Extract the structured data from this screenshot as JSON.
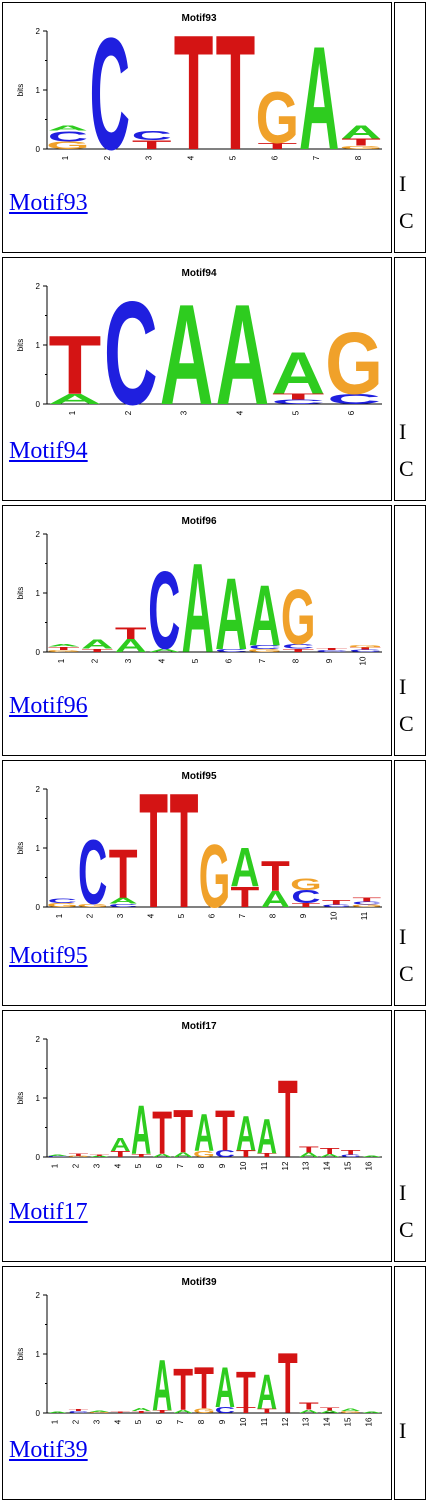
{
  "colors": {
    "A": "#2ecc1f",
    "C": "#1f1fdf",
    "G": "#f0a12a",
    "T": "#d41414",
    "link": "#0000ee"
  },
  "axis": {
    "ylabel": "bits",
    "ticks": [
      "0",
      "1",
      "2"
    ]
  },
  "motifs": [
    {
      "title": "Motif93",
      "link_text": "Motif93",
      "side_a": "I",
      "side_b": "C",
      "columns": [
        [
          [
            "G",
            0.13
          ],
          [
            "C",
            0.18
          ],
          [
            "A",
            0.09
          ]
        ],
        [
          [
            "C",
            1.95
          ]
        ],
        [
          [
            "T",
            0.15
          ],
          [
            "C",
            0.16
          ]
        ],
        [
          [
            "T",
            2.0
          ]
        ],
        [
          [
            "T",
            2.0
          ]
        ],
        [
          [
            "T",
            0.1
          ],
          [
            "G",
            0.9
          ]
        ],
        [
          [
            "A",
            1.8
          ]
        ],
        [
          [
            "G",
            0.06
          ],
          [
            "T",
            0.12
          ],
          [
            "A",
            0.22
          ]
        ]
      ]
    },
    {
      "title": "Motif94",
      "link_text": "Motif94",
      "side_a": "I",
      "side_b": "C",
      "columns": [
        [
          [
            "A",
            0.18
          ],
          [
            "T",
            1.02
          ]
        ],
        [
          [
            "C",
            1.8
          ]
        ],
        [
          [
            "A",
            1.75
          ]
        ],
        [
          [
            "A",
            1.75
          ]
        ],
        [
          [
            "C",
            0.08
          ],
          [
            "T",
            0.1
          ],
          [
            "A",
            0.72
          ]
        ],
        [
          [
            "C",
            0.18
          ],
          [
            "G",
            1.08
          ]
        ]
      ]
    },
    {
      "title": "Motif96",
      "link_text": "Motif96",
      "side_a": "I",
      "side_b": "C",
      "columns": [
        [
          [
            "G",
            0.03
          ],
          [
            "T",
            0.06
          ],
          [
            "A",
            0.04
          ]
        ],
        [
          [
            "T",
            0.06
          ],
          [
            "A",
            0.16
          ]
        ],
        [
          [
            "A",
            0.22
          ],
          [
            "T",
            0.2
          ]
        ],
        [
          [
            "A",
            0.06
          ],
          [
            "C",
            1.35
          ]
        ],
        [
          [
            "A",
            1.55
          ]
        ],
        [
          [
            "C",
            0.05
          ],
          [
            "A",
            1.25
          ]
        ],
        [
          [
            "G",
            0.05
          ],
          [
            "C",
            0.07
          ],
          [
            "A",
            1.05
          ]
        ],
        [
          [
            "T",
            0.06
          ],
          [
            "C",
            0.08
          ],
          [
            "G",
            0.95
          ]
        ],
        [
          [
            "C",
            0.03
          ],
          [
            "T",
            0.03
          ]
        ],
        [
          [
            "C",
            0.04
          ],
          [
            "T",
            0.04
          ],
          [
            "G",
            0.04
          ]
        ]
      ]
    },
    {
      "title": "Motif95",
      "link_text": "Motif95",
      "side_a": "I",
      "side_b": "C",
      "columns": [
        [
          [
            "G",
            0.07
          ],
          [
            "C",
            0.08
          ]
        ],
        [
          [
            "G",
            0.06
          ],
          [
            "C",
            1.12
          ]
        ],
        [
          [
            "C",
            0.06
          ],
          [
            "A",
            0.1
          ],
          [
            "T",
            0.85
          ]
        ],
        [
          [
            "T",
            2.0
          ]
        ],
        [
          [
            "T",
            2.0
          ]
        ],
        [
          [
            "G",
            1.1
          ]
        ],
        [
          [
            "T",
            0.35
          ],
          [
            "A",
            0.68
          ]
        ],
        [
          [
            "A",
            0.28
          ],
          [
            "T",
            0.52
          ]
        ],
        [
          [
            "T",
            0.07
          ],
          [
            "C",
            0.22
          ],
          [
            "G",
            0.2
          ]
        ],
        [
          [
            "C",
            0.04
          ],
          [
            "T",
            0.08
          ]
        ],
        [
          [
            "G",
            0.04
          ],
          [
            "C",
            0.05
          ],
          [
            "T",
            0.07
          ]
        ]
      ]
    },
    {
      "title": "Motif17",
      "link_text": "Motif17",
      "side_a": "I",
      "side_b": "C",
      "columns": [
        [
          [
            "C",
            0.02
          ],
          [
            "A",
            0.02
          ]
        ],
        [
          [
            "G",
            0.02
          ],
          [
            "T",
            0.04
          ]
        ],
        [
          [
            "A",
            0.02
          ],
          [
            "T",
            0.02
          ]
        ],
        [
          [
            "T",
            0.1
          ],
          [
            "A",
            0.22
          ]
        ],
        [
          [
            "T",
            0.05
          ],
          [
            "A",
            0.85
          ]
        ],
        [
          [
            "A",
            0.05
          ],
          [
            "T",
            0.75
          ]
        ],
        [
          [
            "A",
            0.08
          ],
          [
            "T",
            0.75
          ]
        ],
        [
          [
            "G",
            0.1
          ],
          [
            "A",
            0.65
          ]
        ],
        [
          [
            "C",
            0.12
          ],
          [
            "T",
            0.7
          ]
        ],
        [
          [
            "T",
            0.12
          ],
          [
            "A",
            0.6
          ]
        ],
        [
          [
            "T",
            0.07
          ],
          [
            "A",
            0.6
          ]
        ],
        [
          [
            "T",
            1.35
          ]
        ],
        [
          [
            "A",
            0.08
          ],
          [
            "T",
            0.1
          ]
        ],
        [
          [
            "A",
            0.05
          ],
          [
            "T",
            0.1
          ]
        ],
        [
          [
            "C",
            0.04
          ],
          [
            "T",
            0.08
          ]
        ],
        [
          [
            "A",
            0.02
          ]
        ]
      ]
    },
    {
      "title": "Motif39",
      "link_text": "Motif39",
      "side_a": "I",
      "side_b": "",
      "columns": [
        [
          [
            "A",
            0.02
          ]
        ],
        [
          [
            "C",
            0.03
          ],
          [
            "T",
            0.03
          ]
        ],
        [
          [
            "G",
            0.02
          ],
          [
            "A",
            0.02
          ]
        ],
        [
          [
            "T",
            0.02
          ]
        ],
        [
          [
            "T",
            0.03
          ],
          [
            "A",
            0.05
          ]
        ],
        [
          [
            "T",
            0.05
          ],
          [
            "A",
            0.88
          ]
        ],
        [
          [
            "A",
            0.05
          ],
          [
            "T",
            0.72
          ]
        ],
        [
          [
            "G",
            0.08
          ],
          [
            "T",
            0.72
          ]
        ],
        [
          [
            "C",
            0.1
          ],
          [
            "A",
            0.7
          ]
        ],
        [
          [
            "T",
            0.1
          ],
          [
            "T",
            0.62
          ]
        ],
        [
          [
            "T",
            0.08
          ],
          [
            "A",
            0.6
          ]
        ],
        [
          [
            "T",
            1.05
          ]
        ],
        [
          [
            "A",
            0.06
          ],
          [
            "T",
            0.12
          ]
        ],
        [
          [
            "A",
            0.04
          ],
          [
            "T",
            0.06
          ]
        ],
        [
          [
            "G",
            0.03
          ],
          [
            "A",
            0.04
          ]
        ],
        [
          [
            "A",
            0.02
          ]
        ]
      ]
    }
  ]
}
